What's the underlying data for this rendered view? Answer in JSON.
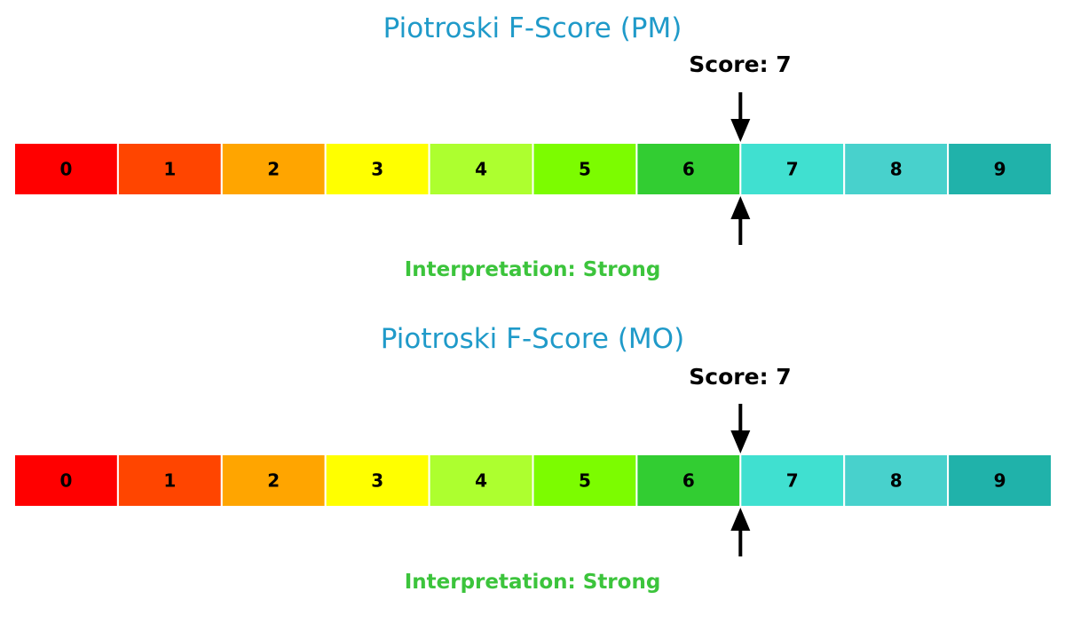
{
  "chart_data": [
    {
      "type": "gauge",
      "title": "Piotroski F-Score (PM)",
      "categories": [
        "0",
        "1",
        "2",
        "3",
        "4",
        "5",
        "6",
        "7",
        "8",
        "9"
      ],
      "colors": [
        "#ff0000",
        "#ff4500",
        "#ffa500",
        "#ffff00",
        "#adff2f",
        "#7cfc00",
        "#32cd32",
        "#40e0d0",
        "#48d1cc",
        "#20b2aa"
      ],
      "score": 7,
      "score_label": "Score: 7",
      "interpretation": "Interpretation: Strong",
      "xlim": [
        0,
        10
      ]
    },
    {
      "type": "gauge",
      "title": "Piotroski F-Score (MO)",
      "categories": [
        "0",
        "1",
        "2",
        "3",
        "4",
        "5",
        "6",
        "7",
        "8",
        "9"
      ],
      "colors": [
        "#ff0000",
        "#ff4500",
        "#ffa500",
        "#ffff00",
        "#adff2f",
        "#7cfc00",
        "#32cd32",
        "#40e0d0",
        "#48d1cc",
        "#20b2aa"
      ],
      "score": 7,
      "score_label": "Score: 7",
      "interpretation": "Interpretation: Strong",
      "xlim": [
        0,
        10
      ]
    }
  ],
  "colors": {
    "title": "#1f9ac9",
    "interpretation": "#3cc43c",
    "arrow": "#000000"
  }
}
